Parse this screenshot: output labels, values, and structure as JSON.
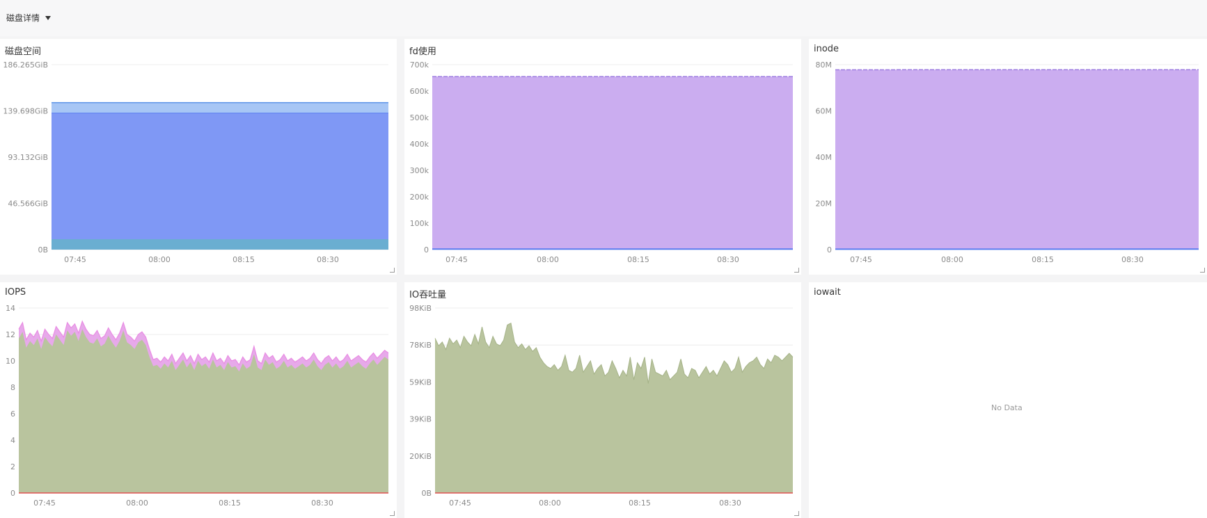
{
  "header": {
    "title": "磁盘详情"
  },
  "colors": {
    "blue_area": "#7f98f5",
    "blue_line": "#5a7df0",
    "light_blue": "#a7c6f5",
    "teal": "#6aaed1",
    "purple_area": "#cbadf0",
    "purple_line": "#9d7ce0",
    "green_area": "#b9c49e",
    "pink_line": "#e98ce3",
    "red_line": "#e05050"
  },
  "panels": [
    {
      "title": "磁盘空间"
    },
    {
      "title": "fd使用"
    },
    {
      "title": "inode"
    },
    {
      "title": "IOPS"
    },
    {
      "title": "IO吞吐量"
    },
    {
      "title": "iowait",
      "no_data": "No Data"
    }
  ],
  "chart_data": [
    {
      "type": "area",
      "title": "磁盘空间",
      "x_ticks": [
        "07:45",
        "08:00",
        "08:15",
        "08:30"
      ],
      "y_ticks": [
        "186.265GiB",
        "139.698GiB",
        "93.132GiB",
        "46.566GiB",
        "0B"
      ],
      "ylim": [
        0,
        186.265
      ],
      "series": [
        {
          "values": [
            137.5,
            137.5
          ]
        },
        {
          "values": [
            148,
            148
          ]
        },
        {
          "values": [
            10.5,
            10.5
          ]
        }
      ]
    },
    {
      "type": "area",
      "title": "fd使用",
      "x_ticks": [
        "07:45",
        "08:00",
        "08:15",
        "08:30"
      ],
      "y_ticks": [
        "700k",
        "600k",
        "500k",
        "400k",
        "300k",
        "200k",
        "100k",
        "0"
      ],
      "ylim": [
        0,
        700000
      ],
      "series": [
        {
          "values": [
            655000,
            655000
          ]
        },
        {
          "values": [
            2000,
            2000
          ]
        }
      ]
    },
    {
      "type": "area",
      "title": "inode",
      "x_ticks": [
        "07:45",
        "08:00",
        "08:15",
        "08:30"
      ],
      "y_ticks": [
        "80M",
        "60M",
        "40M",
        "20M",
        "0"
      ],
      "ylim": [
        0,
        80000000
      ],
      "series": [
        {
          "values": [
            77800000,
            77800000
          ]
        },
        {
          "values": [
            200000,
            200000
          ]
        }
      ]
    },
    {
      "type": "area",
      "title": "IOPS",
      "x_ticks": [
        "07:45",
        "08:00",
        "08:15",
        "08:30"
      ],
      "y_ticks": [
        "14",
        "12",
        "10",
        "8",
        "6",
        "4",
        "2",
        "0"
      ],
      "ylim": [
        0,
        14
      ],
      "series": [
        {
          "values": [
            12.4,
            12.9,
            11.6,
            12.1,
            11.8,
            12.3,
            11.5,
            12.4,
            12.0,
            11.7,
            12.6,
            12.2,
            11.8,
            12.9,
            12.5,
            12.8,
            12.1,
            13.0,
            12.4,
            12.0,
            11.9,
            12.3,
            11.7,
            11.9,
            12.5,
            12.0,
            11.6,
            12.1,
            12.9,
            12.0,
            11.8,
            11.5,
            12.0,
            12.2,
            11.8,
            10.9,
            10.1,
            10.2,
            9.9,
            10.3,
            10.0,
            10.5,
            9.8,
            10.2,
            10.6,
            10.0,
            10.4,
            9.8,
            10.5,
            10.1,
            10.3,
            9.9,
            10.6,
            10.0,
            10.2,
            9.8,
            10.4,
            10.0,
            10.1,
            9.7,
            10.3,
            9.9,
            10.1,
            11.1,
            10.0,
            9.8,
            10.6,
            10.2,
            10.4,
            9.9,
            10.1,
            10.5,
            10.0,
            10.2,
            9.9,
            10.1,
            10.3,
            10.0,
            10.2,
            10.6,
            10.1,
            9.8,
            10.2,
            10.4,
            10.0,
            10.3,
            9.9,
            10.1,
            10.5,
            10.0,
            10.2,
            10.4,
            10.1,
            9.9,
            10.3,
            10.6,
            10.2,
            10.5,
            10.8,
            10.6
          ]
        },
        {
          "values": [
            11.7,
            12.2,
            11.0,
            11.5,
            11.2,
            11.7,
            10.9,
            11.8,
            11.4,
            11.1,
            12.0,
            11.6,
            11.2,
            12.3,
            11.9,
            12.2,
            11.5,
            12.4,
            11.8,
            11.4,
            11.3,
            11.7,
            11.1,
            11.3,
            11.9,
            11.4,
            11.0,
            11.5,
            12.3,
            11.4,
            11.2,
            10.9,
            11.4,
            11.6,
            11.2,
            10.3,
            9.6,
            9.7,
            9.4,
            9.8,
            9.5,
            10.0,
            9.3,
            9.7,
            10.1,
            9.5,
            9.9,
            9.3,
            10.0,
            9.6,
            9.8,
            9.4,
            10.1,
            9.5,
            9.7,
            9.3,
            9.9,
            9.5,
            9.6,
            9.2,
            9.8,
            9.4,
            9.6,
            10.5,
            9.5,
            9.3,
            10.1,
            9.7,
            9.9,
            9.4,
            9.6,
            10.0,
            9.5,
            9.7,
            9.4,
            9.6,
            9.8,
            9.5,
            9.7,
            10.1,
            9.6,
            9.3,
            9.7,
            9.9,
            9.5,
            9.8,
            9.4,
            9.6,
            10.0,
            9.5,
            9.7,
            9.9,
            9.6,
            9.4,
            9.8,
            10.1,
            9.7,
            10.0,
            10.3,
            10.1
          ]
        },
        {
          "values": [
            0,
            0
          ]
        }
      ]
    },
    {
      "type": "area",
      "title": "IO吞吐量",
      "x_ticks": [
        "07:45",
        "08:00",
        "08:15",
        "08:30"
      ],
      "y_ticks": [
        "98KiB",
        "78KiB",
        "59KiB",
        "39KiB",
        "20KiB",
        "0B"
      ],
      "ylim": [
        0,
        98
      ],
      "series": [
        {
          "values": [
            82,
            78,
            80,
            76,
            82,
            79,
            81,
            77,
            83,
            80,
            78,
            84,
            79,
            88,
            80,
            77,
            83,
            79,
            78,
            81,
            89,
            90,
            80,
            77,
            79,
            76,
            78,
            75,
            77,
            72,
            69,
            67,
            66,
            68,
            65,
            67,
            73,
            65,
            64,
            66,
            73,
            64,
            67,
            70,
            63,
            66,
            68,
            62,
            64,
            70,
            66,
            61,
            65,
            62,
            72,
            60,
            69,
            66,
            72,
            58,
            71,
            64,
            63,
            62,
            65,
            60,
            62,
            64,
            71,
            63,
            61,
            66,
            65,
            61,
            64,
            67,
            63,
            65,
            62,
            66,
            70,
            68,
            64,
            66,
            72,
            64,
            67,
            69,
            70,
            72,
            68,
            66,
            71,
            69,
            73,
            72,
            70,
            72,
            74,
            72
          ]
        },
        {
          "values": [
            0,
            0
          ]
        }
      ]
    },
    {
      "type": "area",
      "title": "iowait",
      "series": []
    }
  ]
}
